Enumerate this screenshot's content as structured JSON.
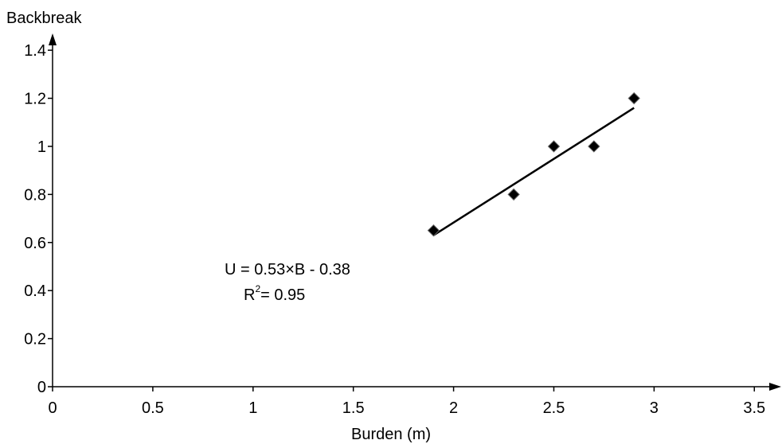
{
  "chart_data": {
    "type": "scatter",
    "x_label": "Burden (m)",
    "y_label": "Backbreak",
    "x": [
      1.9,
      2.3,
      2.5,
      2.7,
      2.9
    ],
    "values": [
      0.65,
      0.8,
      1.0,
      1.0,
      1.2
    ],
    "color": "#000000",
    "trendline": {
      "x": [
        1.9,
        2.9
      ],
      "y": [
        0.63,
        1.16
      ]
    },
    "annotations": [
      "U = 0.53×B - 0.38"
    ],
    "r2_parts": [
      "R",
      "2",
      "= 0.95"
    ],
    "xlim": [
      0,
      3.63
    ],
    "ylim": [
      0,
      1.46
    ],
    "xticks": [
      0,
      0.5,
      1,
      1.5,
      2,
      2.5,
      3,
      3.5
    ],
    "yticks": [
      0,
      0.2,
      0.4,
      0.6,
      0.8,
      1,
      1.2,
      1.4
    ],
    "grid": false
  }
}
